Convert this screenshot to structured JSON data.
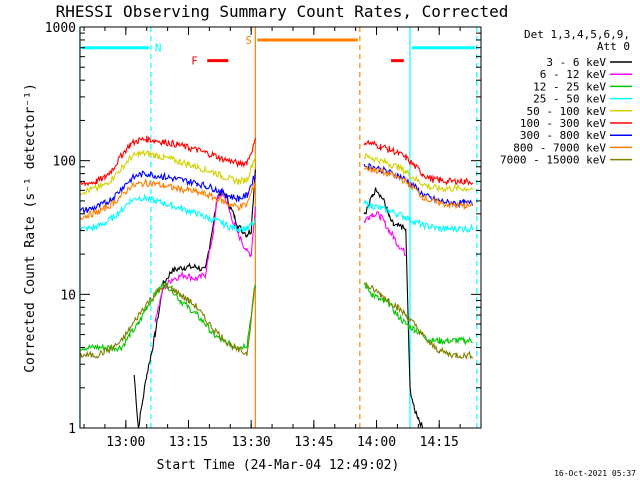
{
  "chart_data": {
    "type": "line",
    "title": "RHESSI Observing Summary Count Rates, Corrected",
    "xlabel": "Start Time (24-Mar-04 12:49:02)",
    "ylabel": "Corrected Count Rate (s⁻¹ detector⁻¹)",
    "y_scale": "log",
    "ylim": [
      1,
      1000
    ],
    "xlim": [
      "12:49:02",
      "14:25"
    ],
    "x_ticks": [
      "13:00",
      "13:15",
      "13:30",
      "13:45",
      "14:00",
      "14:15"
    ],
    "y_ticks": [
      "1",
      "10",
      "100",
      "1000"
    ],
    "grid": false,
    "legend_position": "top-right",
    "legend_header": [
      "Det 1,3,4,5,6,9,",
      "Att 0"
    ],
    "timestamp": "16-Oct-2021 05:37",
    "data_gap": [
      "13:31",
      "13:57"
    ],
    "series": [
      {
        "name": "3 - 6 keV",
        "color": "#000000",
        "x": [
          "12:49",
          "12:53",
          "12:57",
          "13:01",
          "13:02",
          "13:03",
          "13:05",
          "13:06",
          "13:07",
          "13:09",
          "13:11",
          "13:14",
          "13:17",
          "13:19",
          "13:21",
          "13:22",
          "13:23",
          "13:24",
          "13:25",
          "13:26",
          "13:27",
          "13:28",
          "13:29",
          "13:30",
          "13:31"
        ],
        "y": [
          null,
          null,
          null,
          null,
          2.5,
          1.0,
          2.5,
          3.5,
          5.0,
          12,
          15,
          16,
          16,
          15,
          35,
          55,
          58,
          55,
          45,
          38,
          32,
          30,
          28,
          30,
          90
        ],
        "x2": [
          "13:57",
          "13:58",
          "13:59",
          "14:00",
          "14:01",
          "14:02",
          "14:03",
          "14:04",
          "14:05",
          "14:06",
          "14:07",
          "14:08",
          "14:09",
          "14:10",
          "14:11"
        ],
        "y2": [
          40,
          45,
          55,
          62,
          55,
          48,
          38,
          33,
          32,
          32,
          30,
          2.0,
          1.4,
          1.2,
          1.0
        ]
      },
      {
        "name": "6 - 12 keV",
        "color": "#ff00ff",
        "x": [
          "12:49",
          "12:53",
          "12:57",
          "13:01",
          "13:05",
          "13:07",
          "13:09",
          "13:11",
          "13:14",
          "13:17",
          "13:19",
          "13:21",
          "13:22",
          "13:23",
          "13:24",
          "13:25",
          "13:26",
          "13:27",
          "13:28",
          "13:29",
          "13:30",
          "13:31"
        ],
        "y": [
          null,
          null,
          null,
          null,
          null,
          6.5,
          11,
          13,
          14,
          13,
          14,
          30,
          55,
          58,
          50,
          40,
          33,
          28,
          24,
          21,
          20,
          45
        ],
        "x2": [
          "13:57",
          "13:58",
          "13:59",
          "14:00",
          "14:01",
          "14:02",
          "14:03",
          "14:04",
          "14:05",
          "14:06",
          "14:07"
        ],
        "y2": [
          35,
          38,
          40,
          40,
          38,
          34,
          30,
          27,
          24,
          22,
          20
        ]
      },
      {
        "name": "12 - 25 keV",
        "color": "#00c800",
        "x": [
          "12:49",
          "12:53",
          "12:57",
          "12:59",
          "13:01",
          "13:03",
          "13:05",
          "13:07",
          "13:09",
          "13:11",
          "13:13",
          "13:15",
          "13:17",
          "13:19",
          "13:21",
          "13:23",
          "13:25",
          "13:27",
          "13:29",
          "13:31"
        ],
        "y": [
          4.0,
          4.0,
          4.0,
          4.0,
          5.0,
          6.0,
          8.0,
          10,
          12,
          11,
          9,
          8,
          7,
          6,
          5,
          4.5,
          4.2,
          4.0,
          4.2,
          12
        ],
        "x2": [
          "13:57",
          "13:59",
          "14:01",
          "14:03",
          "14:05",
          "14:07",
          "14:09",
          "14:11",
          "14:13",
          "14:15",
          "14:17",
          "14:19",
          "14:21",
          "14:23"
        ],
        "y2": [
          12,
          10,
          9,
          8.5,
          7,
          6,
          5.5,
          5,
          4.5,
          4.5,
          4.5,
          4.5,
          4.5,
          4.5
        ]
      },
      {
        "name": "25 - 50 keV",
        "color": "#00ffff",
        "x": [
          "12:49",
          "12:51",
          "12:53",
          "12:55",
          "12:57",
          "12:59",
          "13:01",
          "13:03",
          "13:05",
          "13:07",
          "13:09",
          "13:11",
          "13:13",
          "13:15",
          "13:17",
          "13:19",
          "13:21",
          "13:23",
          "13:25",
          "13:27",
          "13:29",
          "13:31"
        ],
        "y": [
          31,
          31,
          32,
          34,
          38,
          43,
          50,
          53,
          52,
          50,
          48,
          46,
          44,
          42,
          40,
          38,
          36,
          34,
          32,
          31,
          31,
          35
        ],
        "x2": [
          "13:57",
          "13:59",
          "14:01",
          "14:03",
          "14:05",
          "14:07",
          "14:09",
          "14:11",
          "14:13",
          "14:15",
          "14:17",
          "14:19",
          "14:21",
          "14:23"
        ],
        "y2": [
          48,
          46,
          44,
          42,
          40,
          38,
          35,
          33,
          32,
          31,
          31,
          31,
          31,
          31
        ]
      },
      {
        "name": "50 - 100 keV",
        "color": "#d2d200",
        "x": [
          "12:49",
          "12:51",
          "12:53",
          "12:55",
          "12:57",
          "12:59",
          "13:01",
          "13:03",
          "13:05",
          "13:07",
          "13:09",
          "13:11",
          "13:13",
          "13:15",
          "13:17",
          "13:19",
          "13:21",
          "13:23",
          "13:25",
          "13:27",
          "13:29",
          "13:31"
        ],
        "y": [
          58,
          60,
          62,
          66,
          75,
          88,
          105,
          112,
          113,
          110,
          106,
          102,
          98,
          94,
          90,
          86,
          82,
          77,
          73,
          70,
          72,
          110
        ],
        "x2": [
          "13:57",
          "13:59",
          "14:01",
          "14:03",
          "14:05",
          "14:07",
          "14:09",
          "14:11",
          "14:13",
          "14:15",
          "14:17",
          "14:19",
          "14:21",
          "14:23"
        ],
        "y2": [
          108,
          105,
          100,
          95,
          90,
          83,
          74,
          67,
          63,
          62,
          62,
          62,
          62,
          62
        ]
      },
      {
        "name": "100 - 300 keV",
        "color": "#ff0000",
        "x": [
          "12:49",
          "12:51",
          "12:53",
          "12:55",
          "12:57",
          "12:59",
          "13:01",
          "13:03",
          "13:05",
          "13:07",
          "13:09",
          "13:11",
          "13:13",
          "13:15",
          "13:17",
          "13:19",
          "13:21",
          "13:23",
          "13:25",
          "13:27",
          "13:29",
          "13:31"
        ],
        "y": [
          66,
          68,
          70,
          75,
          88,
          110,
          132,
          142,
          145,
          142,
          138,
          135,
          130,
          125,
          120,
          115,
          110,
          104,
          99,
          95,
          97,
          140
        ],
        "x2": [
          "13:57",
          "13:59",
          "14:01",
          "14:03",
          "14:05",
          "14:07",
          "14:09",
          "14:11",
          "14:13",
          "14:15",
          "14:17",
          "14:19",
          "14:21",
          "14:23"
        ],
        "y2": [
          138,
          134,
          128,
          122,
          115,
          105,
          92,
          80,
          73,
          71,
          70,
          70,
          70,
          70
        ]
      },
      {
        "name": "300 - 800 keV",
        "color": "#0000ff",
        "x": [
          "12:49",
          "12:51",
          "12:53",
          "12:55",
          "12:57",
          "12:59",
          "13:01",
          "13:03",
          "13:05",
          "13:07",
          "13:09",
          "13:11",
          "13:13",
          "13:15",
          "13:17",
          "13:19",
          "13:21",
          "13:23",
          "13:25",
          "13:27",
          "13:29",
          "13:31"
        ],
        "y": [
          42,
          43,
          45,
          48,
          53,
          62,
          72,
          78,
          80,
          78,
          76,
          74,
          72,
          70,
          68,
          65,
          62,
          58,
          54,
          52,
          55,
          80
        ],
        "x2": [
          "13:57",
          "13:59",
          "14:01",
          "14:03",
          "14:05",
          "14:07",
          "14:09",
          "14:11",
          "14:13",
          "14:15",
          "14:17",
          "14:19",
          "14:21",
          "14:23"
        ],
        "y2": [
          92,
          90,
          86,
          82,
          78,
          72,
          64,
          56,
          52,
          50,
          49,
          48,
          48,
          48
        ]
      },
      {
        "name": "800 - 7000 keV",
        "color": "#ff8000",
        "x": [
          "12:49",
          "12:51",
          "12:53",
          "12:55",
          "12:57",
          "12:59",
          "13:01",
          "13:03",
          "13:05",
          "13:07",
          "13:09",
          "13:11",
          "13:13",
          "13:15",
          "13:17",
          "13:19",
          "13:21",
          "13:23",
          "13:25",
          "13:27",
          "13:29",
          "13:31"
        ],
        "y": [
          38,
          39,
          41,
          44,
          48,
          55,
          63,
          67,
          68,
          67,
          65,
          63,
          61,
          60,
          58,
          56,
          53,
          50,
          47,
          45,
          47,
          70
        ],
        "x2": [
          "13:57",
          "13:59",
          "14:01",
          "14:03",
          "14:05",
          "14:07",
          "14:09",
          "14:11",
          "14:13",
          "14:15",
          "14:17",
          "14:19",
          "14:21",
          "14:23"
        ],
        "y2": [
          88,
          86,
          83,
          79,
          75,
          70,
          62,
          54,
          50,
          48,
          47,
          46,
          46,
          46
        ]
      },
      {
        "name": "7000 - 15000 keV",
        "color": "#808000",
        "x": [
          "12:49",
          "12:53",
          "12:57",
          "12:59",
          "13:01",
          "13:03",
          "13:05",
          "13:07",
          "13:09",
          "13:11",
          "13:13",
          "13:15",
          "13:17",
          "13:19",
          "13:21",
          "13:23",
          "13:25",
          "13:27",
          "13:29",
          "13:31"
        ],
        "y": [
          3.5,
          3.5,
          4.0,
          4.5,
          5.5,
          7.0,
          8.5,
          10,
          11.5,
          11,
          10,
          9,
          8,
          6.5,
          5.5,
          4.8,
          4.2,
          3.8,
          3.6,
          12
        ],
        "x2": [
          "13:57",
          "13:59",
          "14:01",
          "14:03",
          "14:05",
          "14:07",
          "14:09",
          "14:11",
          "14:13",
          "14:15",
          "14:17",
          "14:19",
          "14:21",
          "14:23"
        ],
        "y2": [
          12,
          11,
          10,
          9,
          8,
          7,
          6,
          5,
          4.2,
          3.8,
          3.6,
          3.5,
          3.5,
          3.5
        ]
      }
    ],
    "annotations": [
      {
        "label": "N",
        "color": "#00ffff",
        "bar_color": "#00ffff",
        "bars": [
          [
            "12:49",
            "13:06"
          ],
          [
            "14:08",
            "14:24"
          ]
        ],
        "lines": [
          "12:49",
          "13:06",
          "14:08",
          "14:24"
        ],
        "y": 700
      },
      {
        "label": "F",
        "color": "#ff0000",
        "bar_color": "#ff0000",
        "bars": [
          [
            "13:19",
            "13:25"
          ],
          [
            "14:03",
            "14:07"
          ]
        ],
        "y": 560
      },
      {
        "label": "S",
        "color": "#ff8000",
        "bar_color": "#ff8000",
        "bars": [
          [
            "13:31",
            "13:56"
          ]
        ],
        "lines": [
          "13:31",
          "13:56"
        ],
        "y": 800
      }
    ]
  }
}
